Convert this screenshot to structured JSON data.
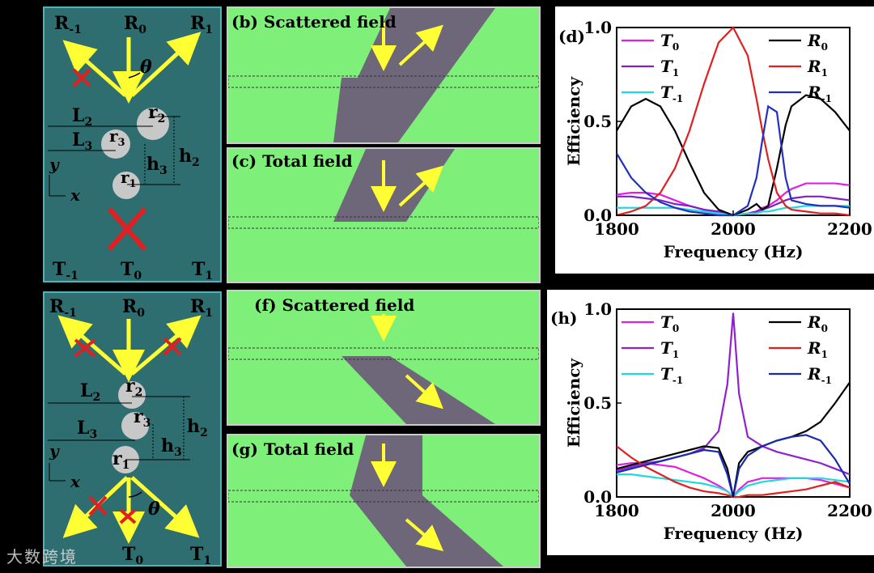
{
  "schematics": {
    "top": {
      "top_labels": [
        "R",
        "-1",
        "R",
        "0",
        "R",
        "1"
      ],
      "bottom_labels": [
        "T",
        "-1",
        "T",
        "0",
        "T",
        "1"
      ],
      "theta": "θ",
      "L2": "L",
      "L2_sub": "2",
      "L3": "L",
      "L3_sub": "3",
      "h2": "h",
      "h2_sub": "2",
      "h3": "h",
      "h3_sub": "3",
      "r1": "r",
      "r1_sub": "1",
      "r2": "r",
      "r2_sub": "2",
      "r3": "r",
      "r3_sub": "3",
      "axis_y": "y",
      "axis_x": "x"
    },
    "bottom": {
      "top_labels": [
        "R",
        "-1",
        "R",
        "0",
        "R",
        "1"
      ],
      "bottom_labels": [
        "T",
        "0",
        "T",
        "1"
      ],
      "theta": "θ",
      "L2": "L",
      "L2_sub": "2",
      "L3": "L",
      "L3_sub": "3",
      "h2": "h",
      "h2_sub": "2",
      "h3": "h",
      "h3_sub": "3",
      "r1": "r",
      "r1_sub": "1",
      "r2": "r",
      "r2_sub": "2",
      "r3": "r",
      "r3_sub": "3",
      "axis_y": "y",
      "axis_x": "x"
    }
  },
  "fields": {
    "b": "(b) Scattered field",
    "c": "(c) Total field",
    "f": "(f) Scattered field",
    "g": "(g) Total field"
  },
  "colors": {
    "teal": "#2e6e70",
    "field_green": "#7ef07a",
    "beam_purple": "#6a3a7a",
    "arrow_yellow": "#ffff33",
    "cross_red": "#e02020"
  },
  "watermark": "大数跨境",
  "chart_data": [
    {
      "id": "d",
      "type": "line",
      "title": "(d)",
      "xlabel": "Frequency (Hz)",
      "ylabel": "Efficiency",
      "xlim": [
        1800,
        2200
      ],
      "ylim": [
        0,
        1.0
      ],
      "xticks": [
        "1800",
        "2000",
        "2200"
      ],
      "yticks": [
        "0.0",
        "0.5",
        "1.0"
      ],
      "x": [
        1800,
        1825,
        1850,
        1875,
        1900,
        1925,
        1950,
        1975,
        2000,
        2025,
        2040,
        2050,
        2060,
        2075,
        2090,
        2100,
        2125,
        2150,
        2175,
        2200
      ],
      "series": [
        {
          "name": "T",
          "sub": "0",
          "color": "#e020e0",
          "values": [
            0.11,
            0.12,
            0.12,
            0.11,
            0.08,
            0.05,
            0.03,
            0.01,
            0.0,
            0.01,
            0.02,
            0.04,
            0.05,
            0.08,
            0.12,
            0.14,
            0.17,
            0.17,
            0.17,
            0.16
          ]
        },
        {
          "name": "T",
          "sub": "1",
          "color": "#8020c0",
          "values": [
            0.1,
            0.1,
            0.09,
            0.08,
            0.06,
            0.05,
            0.03,
            0.02,
            0.0,
            0.01,
            0.02,
            0.03,
            0.04,
            0.06,
            0.08,
            0.09,
            0.1,
            0.1,
            0.09,
            0.08
          ]
        },
        {
          "name": "T",
          "sub": "-1",
          "color": "#20d8e0",
          "values": [
            0.04,
            0.04,
            0.04,
            0.04,
            0.04,
            0.03,
            0.02,
            0.01,
            0.0,
            0.01,
            0.01,
            0.02,
            0.02,
            0.03,
            0.04,
            0.04,
            0.05,
            0.05,
            0.05,
            0.05
          ]
        },
        {
          "name": "R",
          "sub": "0",
          "color": "#000000",
          "values": [
            0.45,
            0.58,
            0.62,
            0.58,
            0.45,
            0.28,
            0.12,
            0.03,
            0.0,
            0.03,
            0.06,
            0.03,
            0.05,
            0.25,
            0.48,
            0.58,
            0.64,
            0.62,
            0.55,
            0.45
          ]
        },
        {
          "name": "R",
          "sub": "1",
          "color": "#e02020",
          "values": [
            0.0,
            0.02,
            0.05,
            0.12,
            0.25,
            0.45,
            0.7,
            0.92,
            1.0,
            0.85,
            0.62,
            0.45,
            0.3,
            0.12,
            0.05,
            0.03,
            0.02,
            0.01,
            0.01,
            0.0
          ]
        },
        {
          "name": "R",
          "sub": "-1",
          "color": "#2030c0",
          "values": [
            0.33,
            0.2,
            0.12,
            0.07,
            0.04,
            0.02,
            0.01,
            0.0,
            0.0,
            0.05,
            0.2,
            0.4,
            0.58,
            0.55,
            0.2,
            0.08,
            0.06,
            0.05,
            0.05,
            0.04
          ]
        }
      ]
    },
    {
      "id": "h",
      "type": "line",
      "title": "(h)",
      "xlabel": "Frequency (Hz)",
      "ylabel": "Efficiency",
      "xlim": [
        1800,
        2200
      ],
      "ylim": [
        0,
        1.0
      ],
      "xticks": [
        "1800",
        "2000",
        "2200"
      ],
      "yticks": [
        "0.0",
        "0.5",
        "1.0"
      ],
      "x": [
        1800,
        1825,
        1850,
        1875,
        1900,
        1925,
        1950,
        1975,
        1990,
        2000,
        2010,
        2025,
        2050,
        2075,
        2100,
        2125,
        2150,
        2175,
        2200
      ],
      "series": [
        {
          "name": "T",
          "sub": "0",
          "color": "#e020e0",
          "values": [
            0.17,
            0.18,
            0.18,
            0.17,
            0.16,
            0.13,
            0.1,
            0.06,
            0.03,
            0.0,
            0.04,
            0.08,
            0.1,
            0.1,
            0.1,
            0.1,
            0.09,
            0.07,
            0.05
          ]
        },
        {
          "name": "T",
          "sub": "1",
          "color": "#9020d0",
          "values": [
            0.14,
            0.16,
            0.18,
            0.19,
            0.21,
            0.23,
            0.26,
            0.35,
            0.6,
            0.98,
            0.55,
            0.32,
            0.27,
            0.24,
            0.22,
            0.2,
            0.18,
            0.15,
            0.12
          ]
        },
        {
          "name": "T",
          "sub": "-1",
          "color": "#20d8e0",
          "values": [
            0.12,
            0.12,
            0.11,
            0.1,
            0.09,
            0.08,
            0.07,
            0.05,
            0.03,
            0.0,
            0.03,
            0.06,
            0.08,
            0.09,
            0.1,
            0.1,
            0.1,
            0.09,
            0.08
          ]
        },
        {
          "name": "R",
          "sub": "0",
          "color": "#000000",
          "values": [
            0.15,
            0.17,
            0.19,
            0.21,
            0.23,
            0.25,
            0.27,
            0.26,
            0.15,
            0.0,
            0.18,
            0.24,
            0.27,
            0.3,
            0.32,
            0.35,
            0.4,
            0.5,
            0.61
          ]
        },
        {
          "name": "R",
          "sub": "1",
          "color": "#e02020",
          "values": [
            0.27,
            0.21,
            0.16,
            0.12,
            0.08,
            0.05,
            0.03,
            0.02,
            0.01,
            0.0,
            0.0,
            0.01,
            0.01,
            0.02,
            0.03,
            0.04,
            0.06,
            0.08,
            0.05
          ]
        },
        {
          "name": "R",
          "sub": "-1",
          "color": "#1a2ab0",
          "values": [
            0.13,
            0.15,
            0.17,
            0.19,
            0.21,
            0.23,
            0.25,
            0.24,
            0.12,
            0.0,
            0.15,
            0.22,
            0.27,
            0.3,
            0.32,
            0.33,
            0.3,
            0.2,
            0.07
          ]
        }
      ]
    }
  ]
}
